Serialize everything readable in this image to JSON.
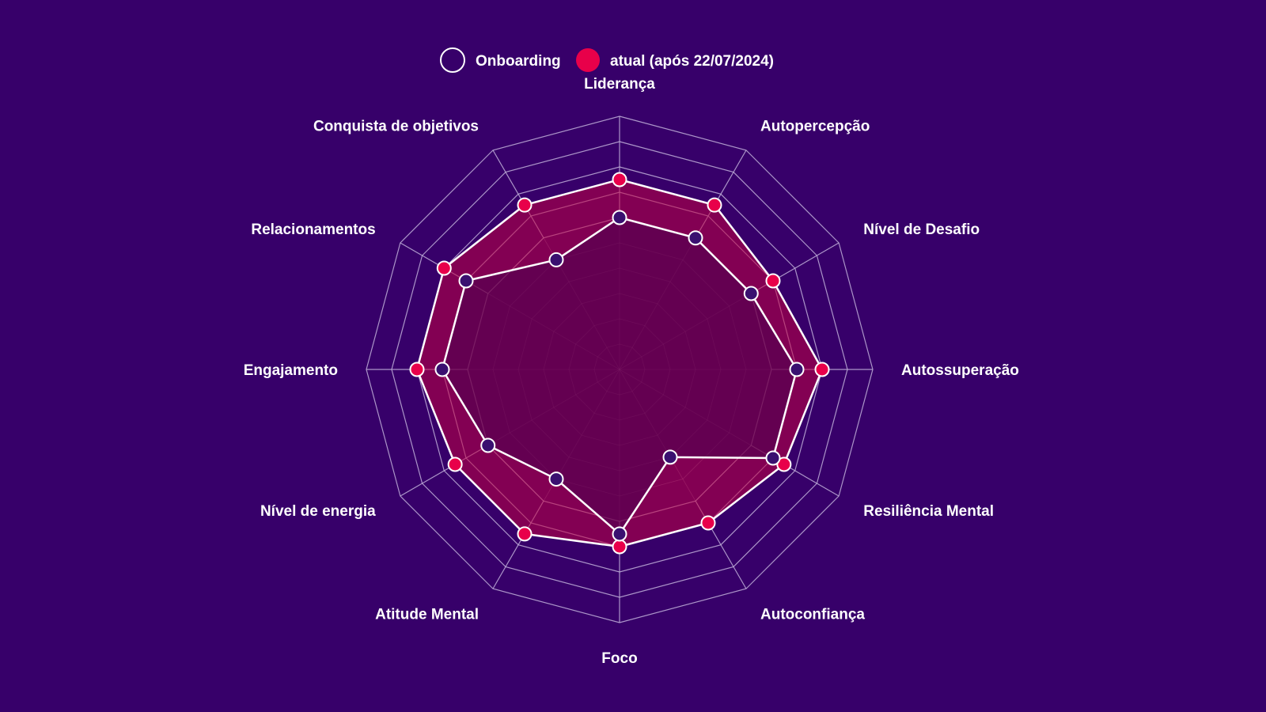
{
  "colors": {
    "background": "#37006A",
    "grid": "#B9A6D4",
    "onboarding_stroke": "#FFFFFF",
    "onboarding_point": "#3A1070",
    "atual_stroke": "#FFFFFF",
    "atual_fill": "#C2003F",
    "atual_point": "#E8004A",
    "label": "#FFFFFF"
  },
  "chart_data": {
    "type": "radar",
    "axis_max": 10,
    "levels": 10,
    "axes": [
      "Liderança",
      "Autopercepção",
      "Nível de Desafio",
      "Autossuperação",
      "Resiliência Mental",
      "Autoconfiança",
      "Foco",
      "Atitude Mental",
      "Nível de energia",
      "Engajamento",
      "Relacionamentos",
      "Conquista de objetivos"
    ],
    "series": [
      {
        "name": "Onboarding",
        "values": [
          6.0,
          6.0,
          6.0,
          7.0,
          7.0,
          4.0,
          6.5,
          5.0,
          6.0,
          7.0,
          7.0,
          5.0
        ]
      },
      {
        "name": "atual (após 22/07/2024)",
        "values": [
          7.5,
          7.5,
          7.0,
          8.0,
          7.5,
          7.0,
          7.0,
          7.5,
          7.5,
          8.0,
          8.0,
          7.5
        ]
      }
    ],
    "legend": {
      "position": "top-center",
      "entries": [
        "Onboarding",
        "atual (após 22/07/2024)"
      ]
    }
  }
}
